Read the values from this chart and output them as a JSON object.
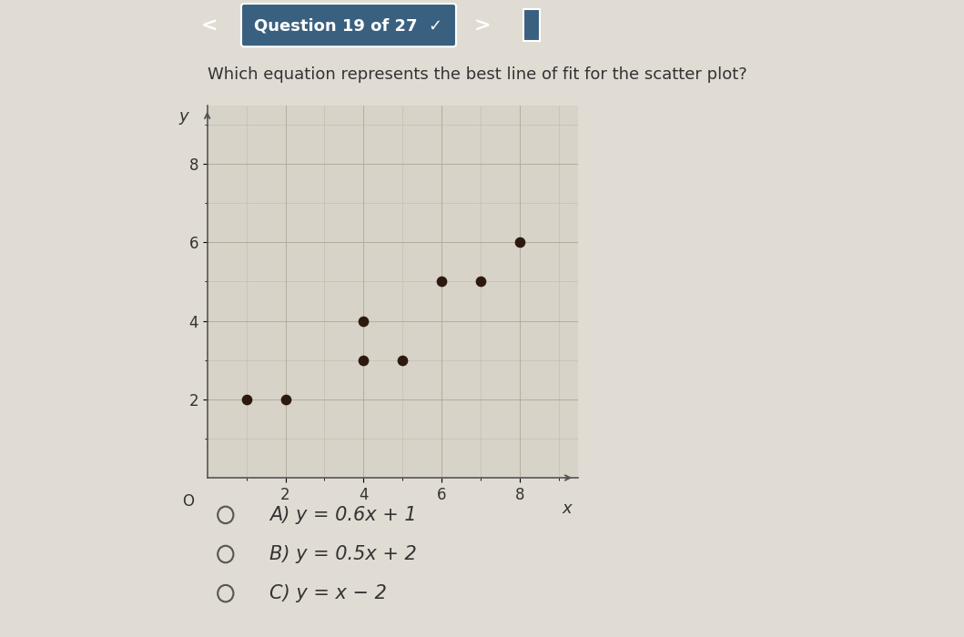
{
  "scatter_x": [
    1,
    2,
    4,
    4,
    5,
    6,
    7,
    8
  ],
  "scatter_y": [
    2,
    2,
    4,
    3,
    3,
    5,
    5,
    6
  ],
  "dot_color": "#2d1a0e",
  "dot_size": 55,
  "xlim": [
    0,
    9.5
  ],
  "ylim": [
    0,
    9.5
  ],
  "xticks": [
    2,
    4,
    6,
    8
  ],
  "yticks": [
    2,
    4,
    6,
    8
  ],
  "xlabel": "x",
  "ylabel": "y",
  "bg_color": "#e0dbd3",
  "plot_bg_color": "#d8d3c8",
  "grid_color": "#b0a898",
  "header_bg": "#3a6080",
  "header_text": "Question 19 of 27  ✓",
  "question_text": "Which equation represents the best line of fit for the scatter plot?",
  "choices": [
    "A) y = 0.6x + 1",
    "B) y = 0.5x + 2",
    "C) y = x − 2"
  ],
  "choice_fontsize": 15,
  "question_fontsize": 13,
  "axis_label_fontsize": 13,
  "tick_fontsize": 12,
  "header_fontsize": 13
}
